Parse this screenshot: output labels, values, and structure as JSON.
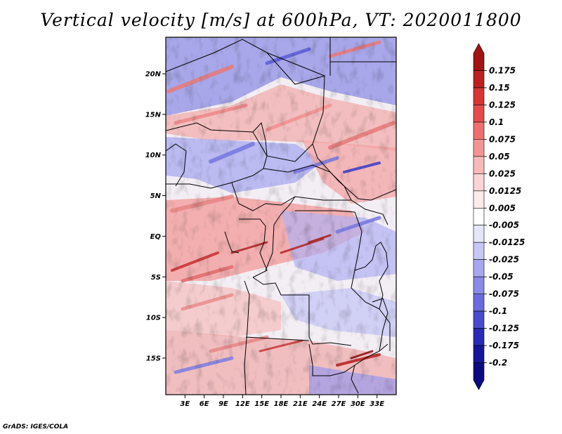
{
  "title": "Vertical velocity [m/s] at 600hPa, VT: 2020011800",
  "credit": "GrADS: IGES/COLA",
  "map": {
    "lon_range": [
      0,
      36
    ],
    "lat_range": [
      -19.5,
      24.5
    ],
    "lat_ticks": [
      {
        "value": 20,
        "label": "20N"
      },
      {
        "value": 15,
        "label": "15N"
      },
      {
        "value": 10,
        "label": "10N"
      },
      {
        "value": 5,
        "label": "5N"
      },
      {
        "value": 0,
        "label": "EQ"
      },
      {
        "value": -5,
        "label": "5S"
      },
      {
        "value": -10,
        "label": "10S"
      },
      {
        "value": -15,
        "label": "15S"
      }
    ],
    "lon_ticks": [
      {
        "value": 3,
        "label": "3E"
      },
      {
        "value": 6,
        "label": "6E"
      },
      {
        "value": 9,
        "label": "9E"
      },
      {
        "value": 12,
        "label": "12E"
      },
      {
        "value": 15,
        "label": "15E"
      },
      {
        "value": 18,
        "label": "18E"
      },
      {
        "value": 21,
        "label": "21E"
      },
      {
        "value": 24,
        "label": "24E"
      },
      {
        "value": 27,
        "label": "27E"
      },
      {
        "value": 30,
        "label": "30E"
      },
      {
        "value": 33,
        "label": "33E"
      }
    ]
  },
  "colorbar": {
    "labels": [
      "0.175",
      "0.15",
      "0.125",
      "0.1",
      "0.075",
      "0.05",
      "0.025",
      "0.0125",
      "0.005",
      "-0.005",
      "-0.0125",
      "-0.025",
      "-0.05",
      "-0.075",
      "-0.1",
      "-0.125",
      "-0.175",
      "-0.2"
    ],
    "colors": [
      "#a01414",
      "#bd2020",
      "#d93333",
      "#e64b4b",
      "#ee6f6f",
      "#f39494",
      "#f8b9b9",
      "#fbd5d5",
      "#fdeaea",
      "#ffffff",
      "#e6e6fb",
      "#c8c8f6",
      "#a8a8f0",
      "#8a8ae8",
      "#6b6be0",
      "#4a4ad0",
      "#2a2ab8",
      "#16169a",
      "#0b0b80"
    ]
  }
}
